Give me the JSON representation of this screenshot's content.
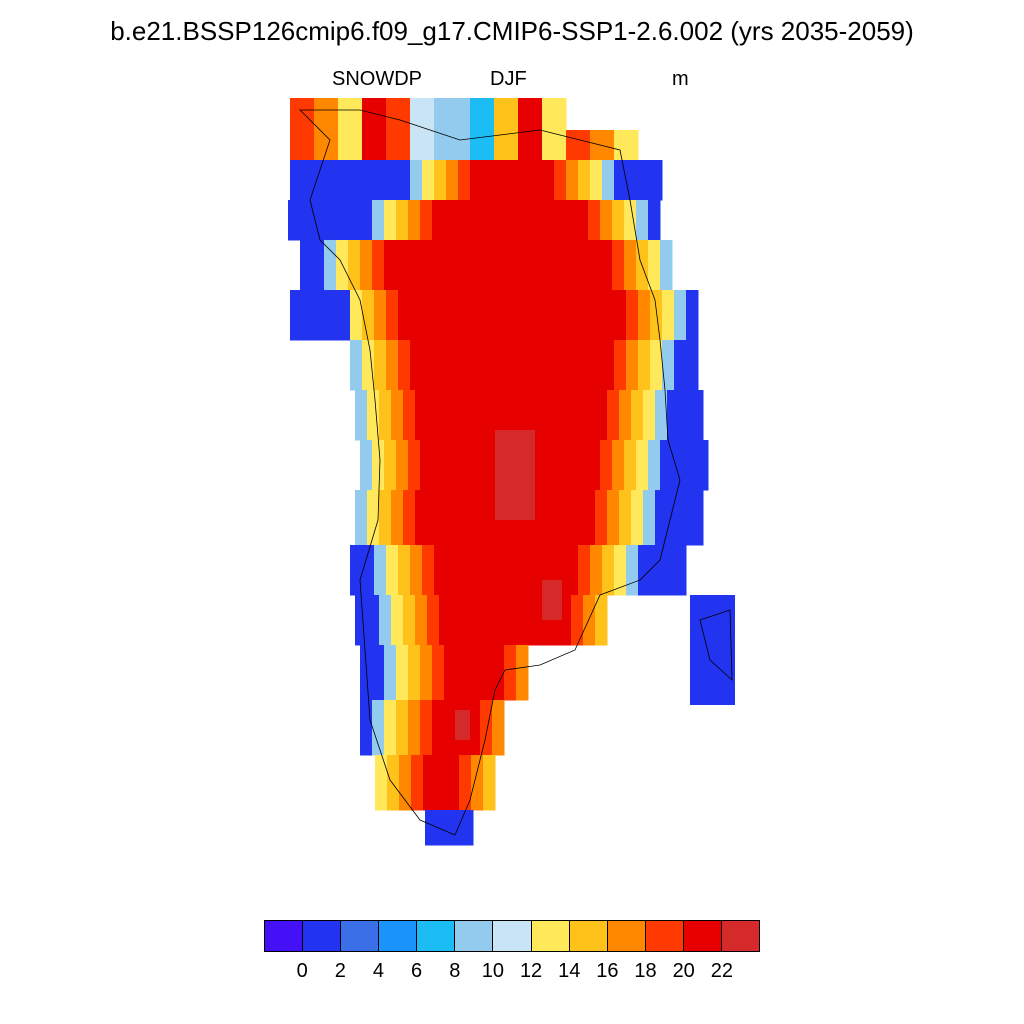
{
  "title": "b.e21.BSSP126cmip6.f09_g17.CMIP6-SSP1-2.6.002 (yrs 2035-2059)",
  "left_label": "SNOWDP",
  "center_label": "DJF",
  "right_label": "m",
  "colorbar": {
    "colors": [
      "#4410f5",
      "#2234f0",
      "#3a6fe8",
      "#1a93fa",
      "#1cbcf5",
      "#93cbee",
      "#c9e5f5",
      "#ffe85a",
      "#ffc21a",
      "#ff8800",
      "#ff3a00",
      "#e60000",
      "#d42a2a"
    ],
    "tick_labels": [
      "0",
      "2",
      "4",
      "6",
      "8",
      "10",
      "12",
      "14",
      "16",
      "18",
      "20",
      "22"
    ]
  },
  "map_data": {
    "variable": "SNOWDP",
    "season": "DJF",
    "units": "m",
    "region": "Greenland",
    "levels": [
      0,
      2,
      4,
      6,
      8,
      10,
      12,
      14,
      16,
      18,
      20,
      22
    ]
  }
}
